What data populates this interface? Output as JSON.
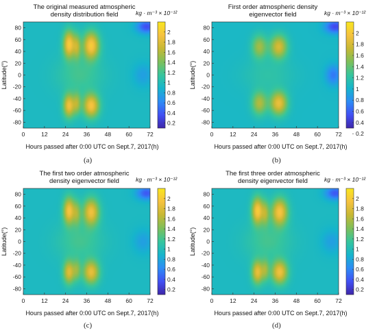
{
  "figure": {
    "units": "kg · m⁻³ × 10⁻¹²",
    "colorbar_ticks": [
      0.2,
      0.4,
      0.6,
      0.8,
      1,
      1.2,
      1.4,
      1.6,
      1.8,
      2
    ],
    "colormap": [
      "#3e26a8",
      "#4150f4",
      "#2d8cf5",
      "#16b5cc",
      "#36c59d",
      "#7ebf5a",
      "#c7b834",
      "#f6c23f",
      "#f9e71f"
    ]
  },
  "chart_data": [
    {
      "type": "heatmap",
      "title_lines": [
        "The original measured atmospheric",
        "density distribution field"
      ],
      "caption": "(a)",
      "xlabel": "Hours passed after 0:00 UTC on Sept.7, 2017(h)",
      "ylabel": "Latitude(°)",
      "xticks": [
        0,
        12,
        24,
        36,
        48,
        60,
        72
      ],
      "yticks": [
        80,
        60,
        40,
        20,
        0,
        -20,
        -40,
        -60,
        -80
      ],
      "xlim": [
        0,
        72
      ],
      "ylim": [
        -90,
        90
      ],
      "clim": [
        0.1,
        2.2
      ],
      "background": 0.95,
      "blobs": [
        {
          "x": 26,
          "y": 52,
          "sx": 2.3,
          "sy": 16,
          "v": 1.05
        },
        {
          "x": 26,
          "y": -52,
          "sx": 2.3,
          "sy": 14,
          "v": 0.95
        },
        {
          "x": 30.5,
          "y": 48,
          "sx": 1.5,
          "sy": 15,
          "v": 0.55
        },
        {
          "x": 30.5,
          "y": -48,
          "sx": 1.5,
          "sy": 13,
          "v": 0.5
        },
        {
          "x": 38.5,
          "y": 50,
          "sx": 3.2,
          "sy": 16,
          "v": 1.05
        },
        {
          "x": 38.5,
          "y": -52,
          "sx": 3.2,
          "sy": 14,
          "v": 1.0
        },
        {
          "x": 32,
          "y": 0,
          "sx": 9,
          "sy": 22,
          "v": 0.25
        },
        {
          "x": 70,
          "y": 82,
          "sx": 4,
          "sy": 8,
          "v": -0.6
        },
        {
          "x": 68,
          "y": 0,
          "sx": 4,
          "sy": 14,
          "v": -0.2
        }
      ]
    },
    {
      "type": "heatmap",
      "title_lines": [
        "First order atmospheric density",
        "eigenvector field"
      ],
      "caption": "(b)",
      "xlabel": "Hours passed after 0:00 UTC on Sept.7, 2017(h)",
      "ylabel": "Latitude(°)",
      "xticks": [
        0,
        12,
        24,
        36,
        48,
        60,
        72
      ],
      "yticks": [
        80,
        60,
        40,
        20,
        0,
        -20,
        -40,
        -60,
        -80
      ],
      "xlim": [
        0,
        72
      ],
      "ylim": [
        -90,
        90
      ],
      "clim": [
        0.3,
        2.2
      ],
      "background": 1.05,
      "blobs": [
        {
          "x": 27,
          "y": 48,
          "sx": 3,
          "sy": 14,
          "v": 0.55
        },
        {
          "x": 27,
          "y": -48,
          "sx": 3,
          "sy": 14,
          "v": 0.6
        },
        {
          "x": 38,
          "y": 48,
          "sx": 3.4,
          "sy": 14,
          "v": 0.75
        },
        {
          "x": 38,
          "y": -48,
          "sx": 3.4,
          "sy": 14,
          "v": 0.85
        },
        {
          "x": 32,
          "y": 0,
          "sx": 10,
          "sy": 20,
          "v": 0.15
        },
        {
          "x": 70,
          "y": 82,
          "sx": 4,
          "sy": 8,
          "v": -0.55
        },
        {
          "x": 69,
          "y": 0,
          "sx": 3,
          "sy": 12,
          "v": -0.35
        }
      ]
    },
    {
      "type": "heatmap",
      "title_lines": [
        "The first two order atmospheric",
        "density eigenvector field"
      ],
      "caption": "(c)",
      "xlabel": "Hours passed after 0:00 UTC on Sept.7, 2017(h)",
      "ylabel": "Latitude(°)",
      "xticks": [
        0,
        12,
        24,
        36,
        48,
        60,
        72
      ],
      "yticks": [
        80,
        60,
        40,
        20,
        0,
        -20,
        -40,
        -60,
        -80
      ],
      "xlim": [
        0,
        72
      ],
      "ylim": [
        -90,
        90
      ],
      "clim": [
        0.1,
        2.2
      ],
      "background": 0.95,
      "blobs": [
        {
          "x": 26,
          "y": 52,
          "sx": 2.3,
          "sy": 16,
          "v": 1.0
        },
        {
          "x": 26,
          "y": -52,
          "sx": 2.3,
          "sy": 14,
          "v": 0.85
        },
        {
          "x": 30.5,
          "y": 48,
          "sx": 1.5,
          "sy": 15,
          "v": 0.45
        },
        {
          "x": 30.5,
          "y": -48,
          "sx": 1.5,
          "sy": 13,
          "v": 0.4
        },
        {
          "x": 38.5,
          "y": 50,
          "sx": 3.2,
          "sy": 16,
          "v": 0.95
        },
        {
          "x": 38.5,
          "y": -52,
          "sx": 3.2,
          "sy": 14,
          "v": 0.9
        },
        {
          "x": 32,
          "y": 0,
          "sx": 9,
          "sy": 22,
          "v": 0.25
        },
        {
          "x": 70,
          "y": 82,
          "sx": 4,
          "sy": 8,
          "v": -0.55
        },
        {
          "x": 68,
          "y": 0,
          "sx": 4,
          "sy": 14,
          "v": -0.2
        }
      ]
    },
    {
      "type": "heatmap",
      "title_lines": [
        "The first three order atmospheric",
        "density eigenvector field"
      ],
      "caption": "(d)",
      "xlabel": "Hours passed after 0:00 UTC on Sept.7, 2017(h)",
      "ylabel": "Latitude(°)",
      "xticks": [
        0,
        12,
        24,
        36,
        48,
        60,
        72
      ],
      "yticks": [
        80,
        60,
        40,
        20,
        0,
        -20,
        -40,
        -60,
        -80
      ],
      "xlim": [
        0,
        72
      ],
      "ylim": [
        -90,
        90
      ],
      "clim": [
        0.1,
        2.2
      ],
      "background": 0.95,
      "blobs": [
        {
          "x": 26,
          "y": 52,
          "sx": 2.3,
          "sy": 16,
          "v": 1.05
        },
        {
          "x": 26,
          "y": -52,
          "sx": 2.3,
          "sy": 14,
          "v": 0.9
        },
        {
          "x": 30.5,
          "y": 48,
          "sx": 1.5,
          "sy": 15,
          "v": 0.5
        },
        {
          "x": 30.5,
          "y": -48,
          "sx": 1.5,
          "sy": 13,
          "v": 0.45
        },
        {
          "x": 38.5,
          "y": 50,
          "sx": 3.2,
          "sy": 16,
          "v": 1.0
        },
        {
          "x": 38.5,
          "y": -52,
          "sx": 3.2,
          "sy": 14,
          "v": 0.95
        },
        {
          "x": 32,
          "y": 0,
          "sx": 9,
          "sy": 22,
          "v": 0.25
        },
        {
          "x": 70,
          "y": 82,
          "sx": 4,
          "sy": 8,
          "v": -0.55
        },
        {
          "x": 68,
          "y": 0,
          "sx": 4,
          "sy": 14,
          "v": -0.2
        }
      ]
    }
  ]
}
